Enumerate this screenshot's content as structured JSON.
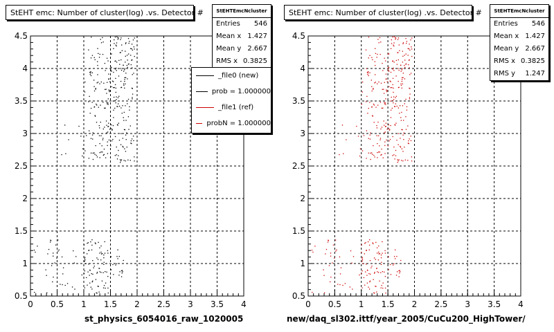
{
  "chart_data": [
    {
      "type": "scatter",
      "title": "StEHT emc: Number of cluster(log) .vs. Detector #",
      "xlabel": "st_physics_6054016_raw_1020005",
      "ylabel": "",
      "xlim": [
        0,
        4
      ],
      "ylim": [
        0.5,
        4.5
      ],
      "x_ticks": [
        "0",
        "0.5",
        "1",
        "1.5",
        "2",
        "2.5",
        "3",
        "3.5",
        "4"
      ],
      "y_ticks": [
        "0.5",
        "1",
        "1.5",
        "2",
        "2.5",
        "3",
        "3.5",
        "4",
        "4.5"
      ],
      "grid": true,
      "marker_color": "#000000",
      "stats": {
        "name": "StEHTEmcNcluster",
        "rows": [
          {
            "label": "Entries",
            "value": "546"
          },
          {
            "label": "Mean x",
            "value": "1.427"
          },
          {
            "label": "Mean y",
            "value": "2.667"
          },
          {
            "label": "RMS x",
            "value": "0.3825"
          }
        ]
      },
      "legend": [
        {
          "label": "_file0 (new)",
          "color": "#000000"
        },
        {
          "label": "prob = 1.000000",
          "color": "#000000"
        },
        {
          "label": "_file1 (ref)",
          "color": "#cc0000"
        },
        {
          "label": "probN = 1.000000",
          "color": "#cc0000"
        }
      ],
      "clusters": [
        {
          "x": [
            0.05,
            0.85
          ],
          "y": [
            0.55,
            1.4
          ],
          "n": 35
        },
        {
          "x": [
            0.95,
            1.45
          ],
          "y": [
            0.55,
            1.4
          ],
          "n": 80
        },
        {
          "x": [
            1.45,
            1.75
          ],
          "y": [
            0.8,
            1.35
          ],
          "n": 18
        },
        {
          "x": [
            0.5,
            1.0
          ],
          "y": [
            2.6,
            3.2
          ],
          "n": 8
        },
        {
          "x": [
            1.0,
            1.45
          ],
          "y": [
            2.6,
            4.5
          ],
          "n": 110
        },
        {
          "x": [
            1.45,
            1.95
          ],
          "y": [
            2.55,
            4.5
          ],
          "n": 190
        }
      ]
    },
    {
      "type": "scatter",
      "title": "StEHT emc: Number of cluster(log) .vs. Detector #",
      "xlabel": "new/daq_sl302.ittf/year_2005/CuCu200_HighTower/",
      "ylabel": "",
      "xlim": [
        0,
        4
      ],
      "ylim": [
        0.5,
        4.5
      ],
      "x_ticks": [
        "0",
        "0.5",
        "1",
        "1.5",
        "2",
        "2.5",
        "3",
        "3.5",
        "4"
      ],
      "y_ticks": [
        "0.5",
        "1",
        "1.5",
        "2",
        "2.5",
        "3",
        "3.5",
        "4",
        "4.5"
      ],
      "grid": true,
      "marker_color": "#cc0000",
      "stats": {
        "name": "StEHTEmcNcluster",
        "rows": [
          {
            "label": "Entries",
            "value": "546"
          },
          {
            "label": "Mean x",
            "value": "1.427"
          },
          {
            "label": "Mean y",
            "value": "2.667"
          },
          {
            "label": "RMS x",
            "value": "0.3825"
          },
          {
            "label": "RMS y",
            "value": "1.247"
          }
        ]
      },
      "clusters": [
        {
          "x": [
            0.05,
            0.85
          ],
          "y": [
            0.55,
            1.4
          ],
          "n": 35
        },
        {
          "x": [
            0.95,
            1.45
          ],
          "y": [
            0.55,
            1.4
          ],
          "n": 80
        },
        {
          "x": [
            1.45,
            1.75
          ],
          "y": [
            0.8,
            1.35
          ],
          "n": 18
        },
        {
          "x": [
            0.5,
            1.0
          ],
          "y": [
            2.6,
            3.2
          ],
          "n": 8
        },
        {
          "x": [
            1.0,
            1.45
          ],
          "y": [
            2.6,
            4.5
          ],
          "n": 110
        },
        {
          "x": [
            1.45,
            1.95
          ],
          "y": [
            2.55,
            4.5
          ],
          "n": 190
        }
      ]
    }
  ]
}
